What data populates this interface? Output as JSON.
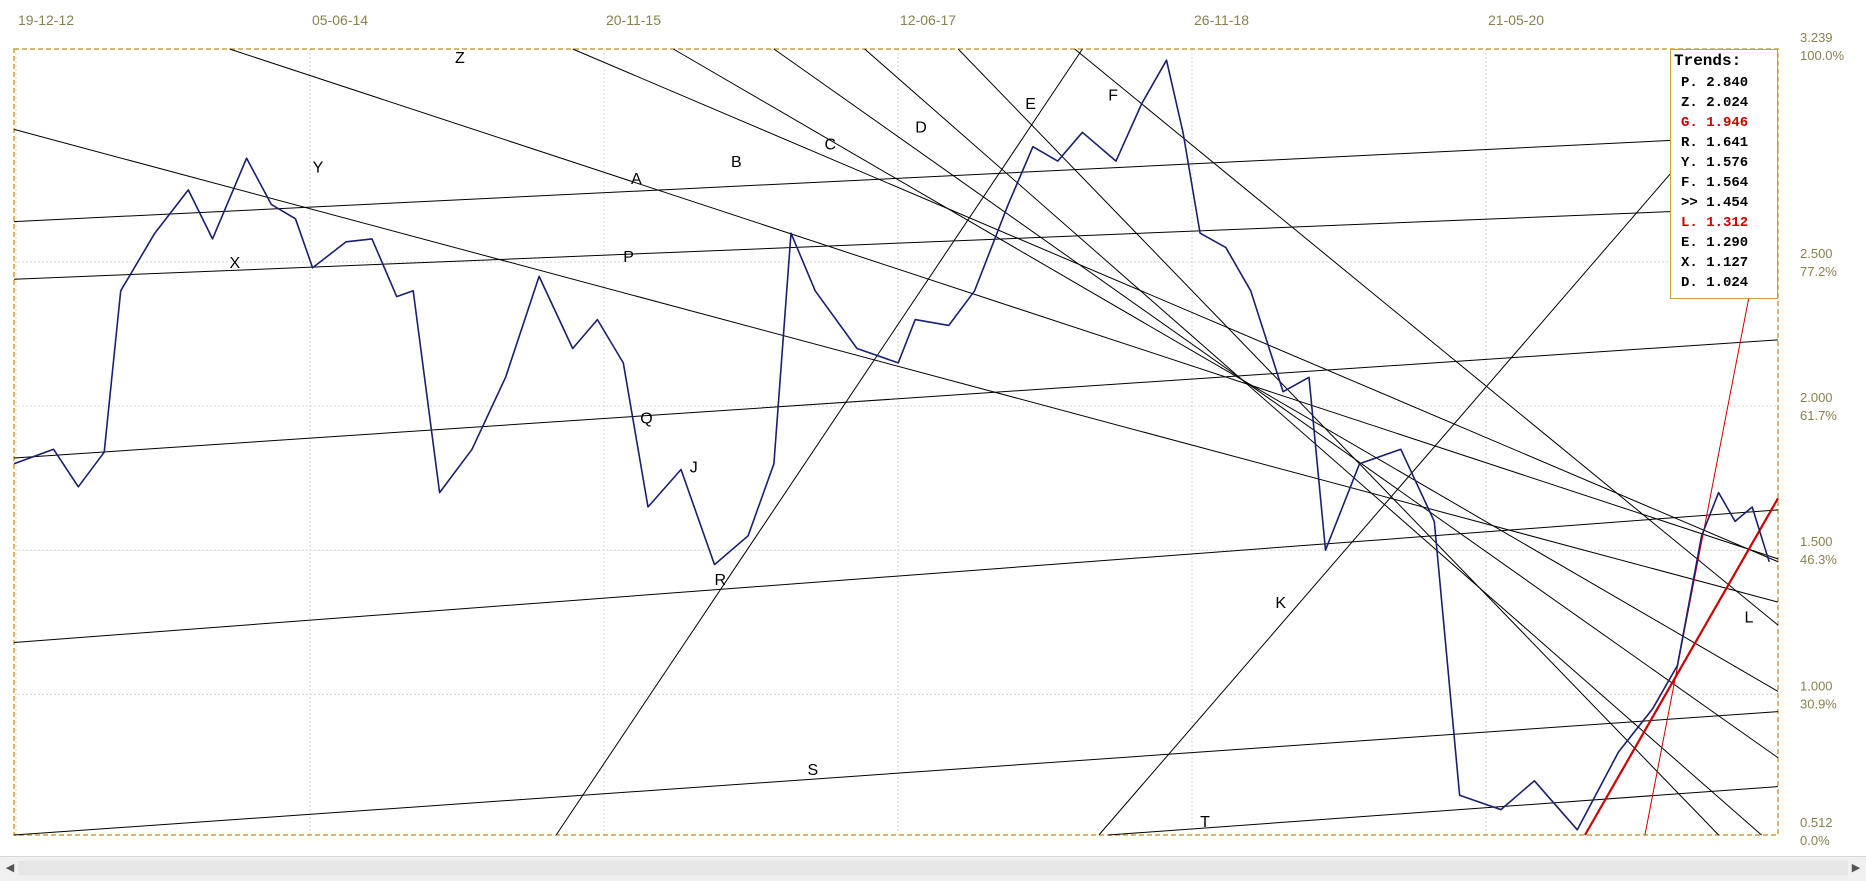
{
  "chart_data": {
    "type": "line",
    "x_ticks": [
      "19-12-12",
      "05-06-14",
      "20-11-15",
      "12-06-17",
      "26-11-18",
      "21-05-20"
    ],
    "y_ticks": [
      {
        "value": 3.239,
        "label": "3.239",
        "pct": "100.0%"
      },
      {
        "value": 2.5,
        "label": "2.500",
        "pct": "77.2%"
      },
      {
        "value": 2.0,
        "label": "2.000",
        "pct": "61.7%"
      },
      {
        "value": 1.5,
        "label": "1.500",
        "pct": "46.3%"
      },
      {
        "value": 1.0,
        "label": "1.000",
        "pct": "30.9%"
      },
      {
        "value": 0.512,
        "label": "0.512",
        "pct": "0.0%"
      }
    ],
    "ylim": [
      0.512,
      3.239
    ],
    "series": [
      {
        "color": "#1a1f6e",
        "points": [
          [
            "2012-12-19",
            1.8
          ],
          [
            "2013-03-01",
            1.85
          ],
          [
            "2013-04-15",
            1.72
          ],
          [
            "2013-06-01",
            1.84
          ],
          [
            "2013-07-01",
            2.4
          ],
          [
            "2013-09-01",
            2.6
          ],
          [
            "2013-11-01",
            2.75
          ],
          [
            "2013-12-15",
            2.58
          ],
          [
            "2014-02-15",
            2.86
          ],
          [
            "2014-04-01",
            2.7
          ],
          [
            "2014-05-15",
            2.65
          ],
          [
            "2014-06-15",
            2.48
          ],
          [
            "2014-08-15",
            2.57
          ],
          [
            "2014-10-01",
            2.58
          ],
          [
            "2014-11-15",
            2.38
          ],
          [
            "2014-12-15",
            2.4
          ],
          [
            "2015-02-01",
            1.7
          ],
          [
            "2015-04-01",
            1.85
          ],
          [
            "2015-06-01",
            2.1
          ],
          [
            "2015-08-01",
            2.45
          ],
          [
            "2015-10-01",
            2.2
          ],
          [
            "2015-11-15",
            2.3
          ],
          [
            "2016-01-01",
            2.15
          ],
          [
            "2016-02-15",
            1.65
          ],
          [
            "2016-04-15",
            1.78
          ],
          [
            "2016-06-15",
            1.45
          ],
          [
            "2016-08-15",
            1.55
          ],
          [
            "2016-10-01",
            1.8
          ],
          [
            "2016-11-01",
            2.6
          ],
          [
            "2016-12-15",
            2.4
          ],
          [
            "2017-03-01",
            2.2
          ],
          [
            "2017-05-15",
            2.15
          ],
          [
            "2017-06-15",
            2.3
          ],
          [
            "2017-08-15",
            2.28
          ],
          [
            "2017-10-01",
            2.4
          ],
          [
            "2017-12-01",
            2.7
          ],
          [
            "2018-01-15",
            2.9
          ],
          [
            "2018-03-01",
            2.85
          ],
          [
            "2018-04-15",
            2.95
          ],
          [
            "2018-06-15",
            2.85
          ],
          [
            "2018-08-01",
            3.05
          ],
          [
            "2018-09-15",
            3.2
          ],
          [
            "2018-10-15",
            2.95
          ],
          [
            "2018-11-15",
            2.6
          ],
          [
            "2019-01-01",
            2.55
          ],
          [
            "2019-02-15",
            2.4
          ],
          [
            "2019-04-15",
            2.05
          ],
          [
            "2019-06-01",
            2.1
          ],
          [
            "2019-07-01",
            1.5
          ],
          [
            "2019-09-01",
            1.8
          ],
          [
            "2019-11-15",
            1.85
          ],
          [
            "2020-01-15",
            1.6
          ],
          [
            "2020-03-01",
            0.65
          ],
          [
            "2020-05-15",
            0.6
          ],
          [
            "2020-07-15",
            0.7
          ],
          [
            "2020-10-01",
            0.53
          ],
          [
            "2020-12-15",
            0.8
          ],
          [
            "2021-02-15",
            0.95
          ],
          [
            "2021-04-01",
            1.1
          ],
          [
            "2021-05-15",
            1.55
          ],
          [
            "2021-06-15",
            1.7
          ],
          [
            "2021-07-15",
            1.6
          ],
          [
            "2021-08-15",
            1.65
          ],
          [
            "2021-09-15",
            1.46
          ]
        ]
      }
    ],
    "trend_lines": [
      {
        "label": "Z",
        "p1": [
          "2014-01-15",
          3.239
        ],
        "p2": [
          "2021-10-01",
          1.47
        ],
        "color": "#000000"
      },
      {
        "label": "Y",
        "p1": [
          "2012-12-19",
          2.96
        ],
        "p2": [
          "2021-10-01",
          1.32
        ],
        "color": "#000000"
      },
      {
        "label": "X",
        "p1": [
          "2012-12-19",
          2.64
        ],
        "p2": [
          "2021-10-01",
          2.94
        ],
        "color": "#000000"
      },
      {
        "label": "P",
        "p1": [
          "2012-12-19",
          2.44
        ],
        "p2": [
          "2021-10-01",
          2.69
        ],
        "color": "#000000"
      },
      {
        "label": "Q",
        "p1": [
          "2012-12-19",
          1.82
        ],
        "p2": [
          "2021-10-01",
          2.23
        ],
        "color": "#000000"
      },
      {
        "label": "R",
        "p1": [
          "2012-12-19",
          1.18
        ],
        "p2": [
          "2021-10-01",
          1.64
        ],
        "color": "#000000"
      },
      {
        "label": "S",
        "p1": [
          "2012-12-19",
          0.51
        ],
        "p2": [
          "2021-10-01",
          0.94
        ],
        "color": "#000000"
      },
      {
        "label": "T",
        "p1": [
          "2018-06-01",
          0.512
        ],
        "p2": [
          "2021-10-01",
          0.68
        ],
        "color": "#000000"
      },
      {
        "label": "A",
        "p1": [
          "2015-10-01",
          3.239
        ],
        "p2": [
          "2021-10-01",
          1.46
        ],
        "color": "#000000"
      },
      {
        "label": "B",
        "p1": [
          "2016-04-01",
          3.239
        ],
        "p2": [
          "2021-10-01",
          1.01
        ],
        "color": "#000000"
      },
      {
        "label": "C",
        "p1": [
          "2016-10-01",
          3.239
        ],
        "p2": [
          "2021-10-01",
          0.78
        ],
        "color": "#000000"
      },
      {
        "label": "D",
        "p1": [
          "2017-03-15",
          3.239
        ],
        "p2": [
          "2021-09-01",
          0.512
        ],
        "color": "#000000"
      },
      {
        "label": "E",
        "p1": [
          "2017-09-01",
          3.239
        ],
        "p2": [
          "2021-06-15",
          0.512
        ],
        "color": "#000000"
      },
      {
        "label": "F",
        "p1": [
          "2018-04-01",
          3.239
        ],
        "p2": [
          "2021-10-01",
          1.24
        ],
        "color": "#000000"
      },
      {
        "label": "J",
        "p1": [
          "2015-09-01",
          0.512
        ],
        "p2": [
          "2018-04-15",
          3.239
        ],
        "color": "#000000"
      },
      {
        "label": "K",
        "p1": [
          "2018-05-15",
          0.512
        ],
        "p2": [
          "2021-06-15",
          3.0
        ],
        "color": "#000000"
      },
      {
        "label": "G",
        "p1": [
          "2021-02-01",
          0.512
        ],
        "p2": [
          "2021-10-01",
          2.9
        ],
        "color": "#cc0000"
      },
      {
        "label": "L",
        "p1": [
          "2020-10-15",
          0.512
        ],
        "p2": [
          "2021-10-01",
          1.68
        ],
        "color": "#cc0000",
        "bold": true
      }
    ],
    "line_labels": [
      {
        "text": "Z",
        "x": "2015-03-01",
        "y": 3.19
      },
      {
        "text": "Y",
        "x": "2014-06-15",
        "y": 2.81
      },
      {
        "text": "A",
        "x": "2016-01-15",
        "y": 2.77
      },
      {
        "text": "B",
        "x": "2016-07-15",
        "y": 2.83
      },
      {
        "text": "C",
        "x": "2017-01-01",
        "y": 2.89
      },
      {
        "text": "D",
        "x": "2017-06-15",
        "y": 2.95
      },
      {
        "text": "E",
        "x": "2018-01-01",
        "y": 3.03
      },
      {
        "text": "F",
        "x": "2018-06-01",
        "y": 3.06
      },
      {
        "text": "X",
        "x": "2014-01-15",
        "y": 2.48
      },
      {
        "text": "P",
        "x": "2016-01-01",
        "y": 2.5
      },
      {
        "text": "Q",
        "x": "2016-02-01",
        "y": 1.94
      },
      {
        "text": "J",
        "x": "2016-05-01",
        "y": 1.77
      },
      {
        "text": "R",
        "x": "2016-06-15",
        "y": 1.38
      },
      {
        "text": "K",
        "x": "2019-04-01",
        "y": 1.3
      },
      {
        "text": "S",
        "x": "2016-12-01",
        "y": 0.72
      },
      {
        "text": "T",
        "x": "2018-11-15",
        "y": 0.54
      },
      {
        "text": "L",
        "x": "2021-08-01",
        "y": 1.25,
        "color": "#cc0000"
      }
    ]
  },
  "legend": {
    "title": "Trends:",
    "items": [
      {
        "text": "P. 2.840",
        "color": "#000000"
      },
      {
        "text": "Z. 2.024",
        "color": "#000000"
      },
      {
        "text": "G. 1.946",
        "color": "#cc0000"
      },
      {
        "text": "R. 1.641",
        "color": "#000000"
      },
      {
        "text": "Y. 1.576",
        "color": "#000000"
      },
      {
        "text": "F. 1.564",
        "color": "#000000"
      },
      {
        "text": ">> 1.454",
        "color": "#000000"
      },
      {
        "text": "L. 1.312",
        "color": "#cc0000"
      },
      {
        "text": "E. 1.290",
        "color": "#000000"
      },
      {
        "text": "X. 1.127",
        "color": "#000000"
      },
      {
        "text": "D. 1.024",
        "color": "#000000"
      }
    ]
  },
  "scrollbar": {
    "left_icon": "arrow-left-icon",
    "right_icon": "arrow-right-icon"
  }
}
